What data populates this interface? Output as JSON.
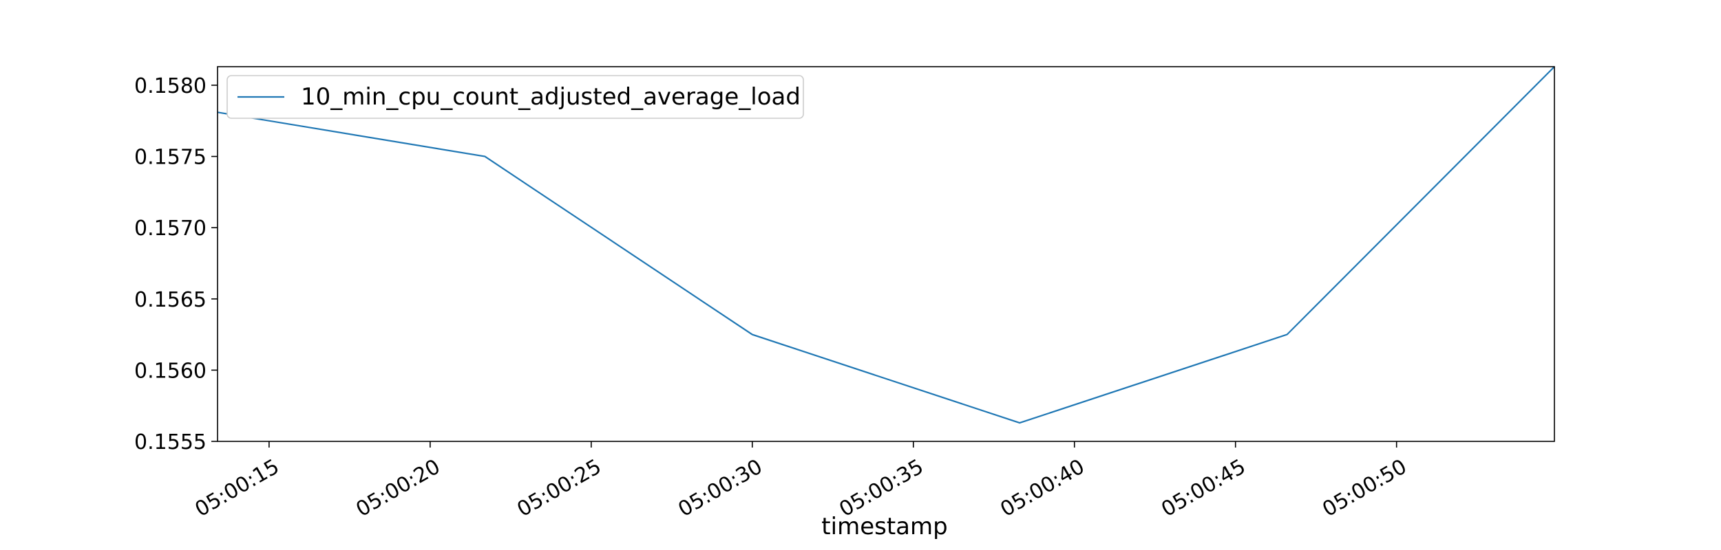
{
  "chart_data": {
    "type": "line",
    "title": "",
    "xlabel": "timestamp",
    "ylabel": "",
    "x_tick_labels": [
      "05:00:15",
      "05:00:20",
      "05:00:25",
      "05:00:30",
      "05:00:35",
      "05:00:40",
      "05:00:45",
      "05:00:50"
    ],
    "x_tick_values": [
      "05:00:15",
      "05:00:20",
      "05:00:25",
      "05:00:30",
      "05:00:35",
      "05:00:40",
      "05:00:45",
      "05:00:50"
    ],
    "xlim": [
      "05:00:13.4",
      "05:00:54.9"
    ],
    "y_tick_labels": [
      "0.1555",
      "0.1560",
      "0.1565",
      "0.1570",
      "0.1575",
      "0.1580"
    ],
    "y_tick_values": [
      0.1555,
      0.156,
      0.1565,
      0.157,
      0.1575,
      0.158
    ],
    "ylim": [
      0.1555,
      0.15813
    ],
    "grid": false,
    "legend_position": "top-left",
    "series": [
      {
        "name": "10_min_cpu_count_adjusted_average_load",
        "color": "#1f77b4",
        "x": [
          "05:00:13.4",
          "05:00:21.7",
          "05:00:30.0",
          "05:00:38.3",
          "05:00:46.6",
          "05:00:54.9"
        ],
        "y": [
          0.15781,
          0.1575,
          0.15625,
          0.15563,
          0.15625,
          0.15813
        ]
      }
    ]
  }
}
